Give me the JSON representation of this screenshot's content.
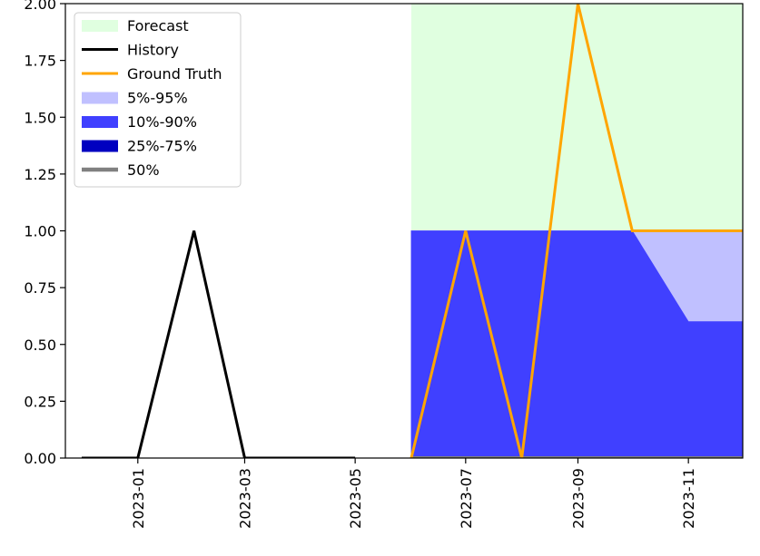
{
  "chart_data": {
    "type": "line",
    "xlim": [
      "2022-11-22",
      "2023-12-01"
    ],
    "ylim": [
      0,
      2
    ],
    "x_ticks": [
      "2023-01",
      "2023-03",
      "2023-05",
      "2023-07",
      "2023-09",
      "2023-11"
    ],
    "y_ticks": [
      "0.00",
      "0.25",
      "0.50",
      "0.75",
      "1.00",
      "1.25",
      "1.50",
      "1.75",
      "2.00"
    ],
    "grid": false,
    "legend_position": "upper-left",
    "series": [
      {
        "name": "History",
        "color": "#000000",
        "points": [
          {
            "x": "2022-12-01",
            "y": 0
          },
          {
            "x": "2023-01-01",
            "y": 0
          },
          {
            "x": "2023-02-01",
            "y": 1
          },
          {
            "x": "2023-03-01",
            "y": 0
          },
          {
            "x": "2023-04-01",
            "y": 0
          },
          {
            "x": "2023-05-01",
            "y": 0
          }
        ]
      },
      {
        "name": "Ground Truth",
        "color": "#ffa500",
        "points": [
          {
            "x": "2023-06-01",
            "y": 0
          },
          {
            "x": "2023-07-01",
            "y": 1
          },
          {
            "x": "2023-08-01",
            "y": 0
          },
          {
            "x": "2023-09-01",
            "y": 2
          },
          {
            "x": "2023-10-01",
            "y": 1
          },
          {
            "x": "2023-11-01",
            "y": 1
          },
          {
            "x": "2023-12-01",
            "y": 1
          }
        ]
      },
      {
        "name": "50%",
        "color": "#808080",
        "points": [
          {
            "x": "2023-06-01",
            "y": 0
          },
          {
            "x": "2023-12-01",
            "y": 0
          }
        ]
      }
    ],
    "forecast_region": {
      "name": "Forecast",
      "color": "#e0ffe0",
      "x_start": "2023-06-01",
      "x_end": "2023-12-01"
    },
    "bands": [
      {
        "name": "5%-95%",
        "color": "#c0c0ff",
        "x": [
          "2023-06-01",
          "2023-07-01",
          "2023-08-01",
          "2023-09-01",
          "2023-10-01",
          "2023-11-01",
          "2023-12-01"
        ],
        "lower": [
          0,
          0,
          0,
          0,
          0,
          0,
          0
        ],
        "upper": [
          1,
          1,
          1,
          1,
          1,
          1,
          1
        ]
      },
      {
        "name": "10%-90%",
        "color": "#4040ff",
        "x": [
          "2023-06-01",
          "2023-07-01",
          "2023-08-01",
          "2023-09-01",
          "2023-10-01",
          "2023-11-01",
          "2023-12-01"
        ],
        "lower": [
          0,
          0,
          0,
          0,
          0,
          0,
          0
        ],
        "upper": [
          1,
          1,
          1,
          1,
          1,
          0.6,
          0.6
        ]
      },
      {
        "name": "25%-75%",
        "color": "#0000c0",
        "x": [
          "2023-06-01",
          "2023-12-01"
        ],
        "lower": [
          0,
          0
        ],
        "upper": [
          0,
          0
        ]
      }
    ],
    "legend": [
      {
        "label": "Forecast",
        "kind": "patch",
        "color": "#e0ffe0"
      },
      {
        "label": "History",
        "kind": "line",
        "color": "#000000"
      },
      {
        "label": "Ground Truth",
        "kind": "line",
        "color": "#ffa500"
      },
      {
        "label": "5%-95%",
        "kind": "patch",
        "color": "#c0c0ff"
      },
      {
        "label": "10%-90%",
        "kind": "patch",
        "color": "#4040ff"
      },
      {
        "label": "25%-75%",
        "kind": "patch",
        "color": "#0000c0"
      },
      {
        "label": "50%",
        "kind": "line",
        "color": "#808080"
      }
    ]
  }
}
